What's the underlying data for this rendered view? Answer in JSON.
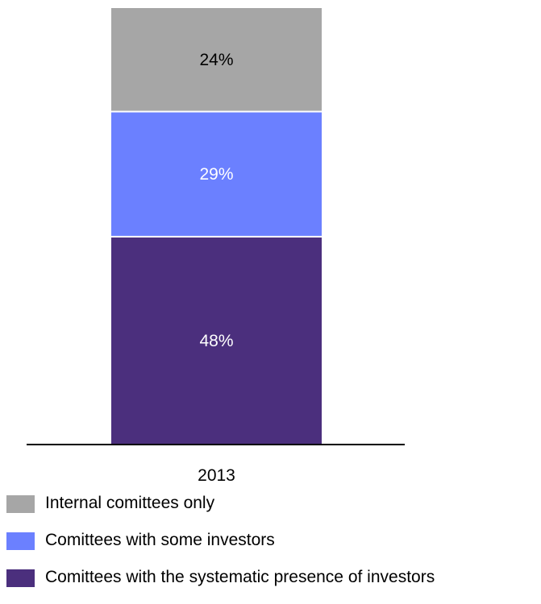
{
  "chart_data": {
    "type": "bar",
    "stacked": true,
    "categories": [
      "2013"
    ],
    "series": [
      {
        "name": "Committees with the systematic presence of investors",
        "values": [
          48
        ],
        "label": "48%",
        "color": "#4b2f7d",
        "label_color": "#ffffff"
      },
      {
        "name": "Comittees with some investors",
        "values": [
          29
        ],
        "label": "29%",
        "color": "#6b80ff",
        "label_color": "#ffffff"
      },
      {
        "name": "Internal comittees only",
        "values": [
          24
        ],
        "label": "24%",
        "color": "#a6a6a6",
        "label_color": "#000000"
      }
    ],
    "ylim": [
      0,
      101
    ],
    "grid": false,
    "legend_position": "bottom-left"
  },
  "legend": {
    "items": [
      {
        "label": "Internal comittees only",
        "color": "#a6a6a6"
      },
      {
        "label": "Comittees with some investors",
        "color": "#6b80ff"
      },
      {
        "label": "Comittees with the systematic presence of investors",
        "color": "#4b2f7d"
      }
    ]
  }
}
